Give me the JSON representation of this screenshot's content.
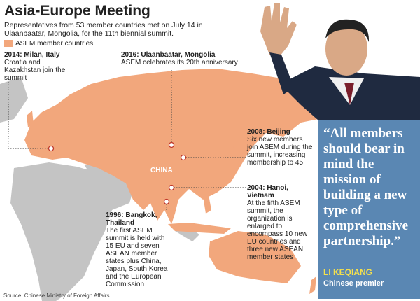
{
  "header": {
    "title": "Asia-Europe Meeting",
    "subtitle": "Representatives from 53 member countries met on July 14 in Ulaanbaatar, Mongolia, for the 11th biennial summit.",
    "legend": "ASEM member countries"
  },
  "map": {
    "country_label": "CHINA",
    "events": [
      {
        "heading": "2014: Milan, Italy",
        "text": "Croatia and Kazakhstan join the summit"
      },
      {
        "heading": "2016: Ulaanbaatar, Mongolia",
        "text": "ASEM celebrates its 20th anniversary"
      },
      {
        "heading": "2008: Beijing",
        "text": "Six new members join ASEM during the summit, increasing membership to 45"
      },
      {
        "heading": "2004: Hanoi, Vietnam",
        "text": "At the fifth ASEM summit, the organization is enlarged to encompass 10 new EU countries and three new ASEAN member states"
      },
      {
        "heading": "1996: Bangkok, Thailand",
        "text": "The first ASEM summit is held with 15 EU and seven ASEAN member states plus China, Japan, South Korea and the European Commission"
      }
    ]
  },
  "quote": {
    "text": "“All members should bear in mind the mission of building a new type of comprehensive partnership.”",
    "speaker": "LI KEQIANG",
    "role": "Chinese premier"
  },
  "footer": {
    "source": "Source: Chinese Ministry of Foreign Affairs"
  }
}
